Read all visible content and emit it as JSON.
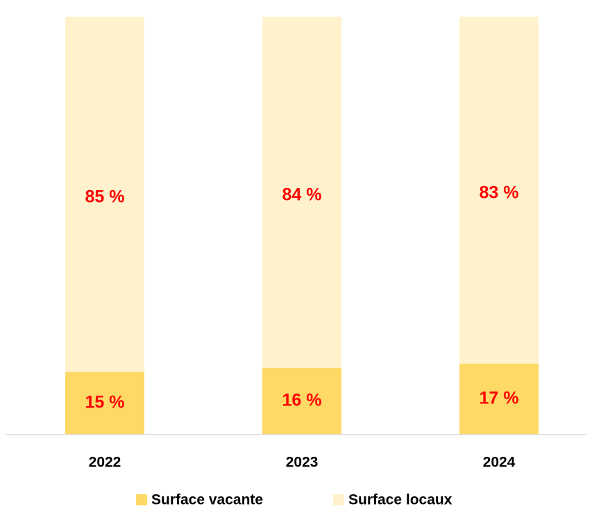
{
  "chart_data": {
    "type": "stacked_bar",
    "categories": [
      "2022",
      "2023",
      "2024"
    ],
    "series": [
      {
        "name": "Surface vacante",
        "color": "#ffd966",
        "values": [
          15,
          16,
          17
        ],
        "value_labels": [
          "15 %",
          "16 %",
          "17 %"
        ]
      },
      {
        "name": "Surface locaux",
        "color": "#fff2cc",
        "values": [
          85,
          84,
          83
        ],
        "value_labels": [
          "85 %",
          "84 %",
          "83 %"
        ]
      }
    ],
    "ylim": [
      0,
      100
    ],
    "label_color": "#ff0000"
  }
}
